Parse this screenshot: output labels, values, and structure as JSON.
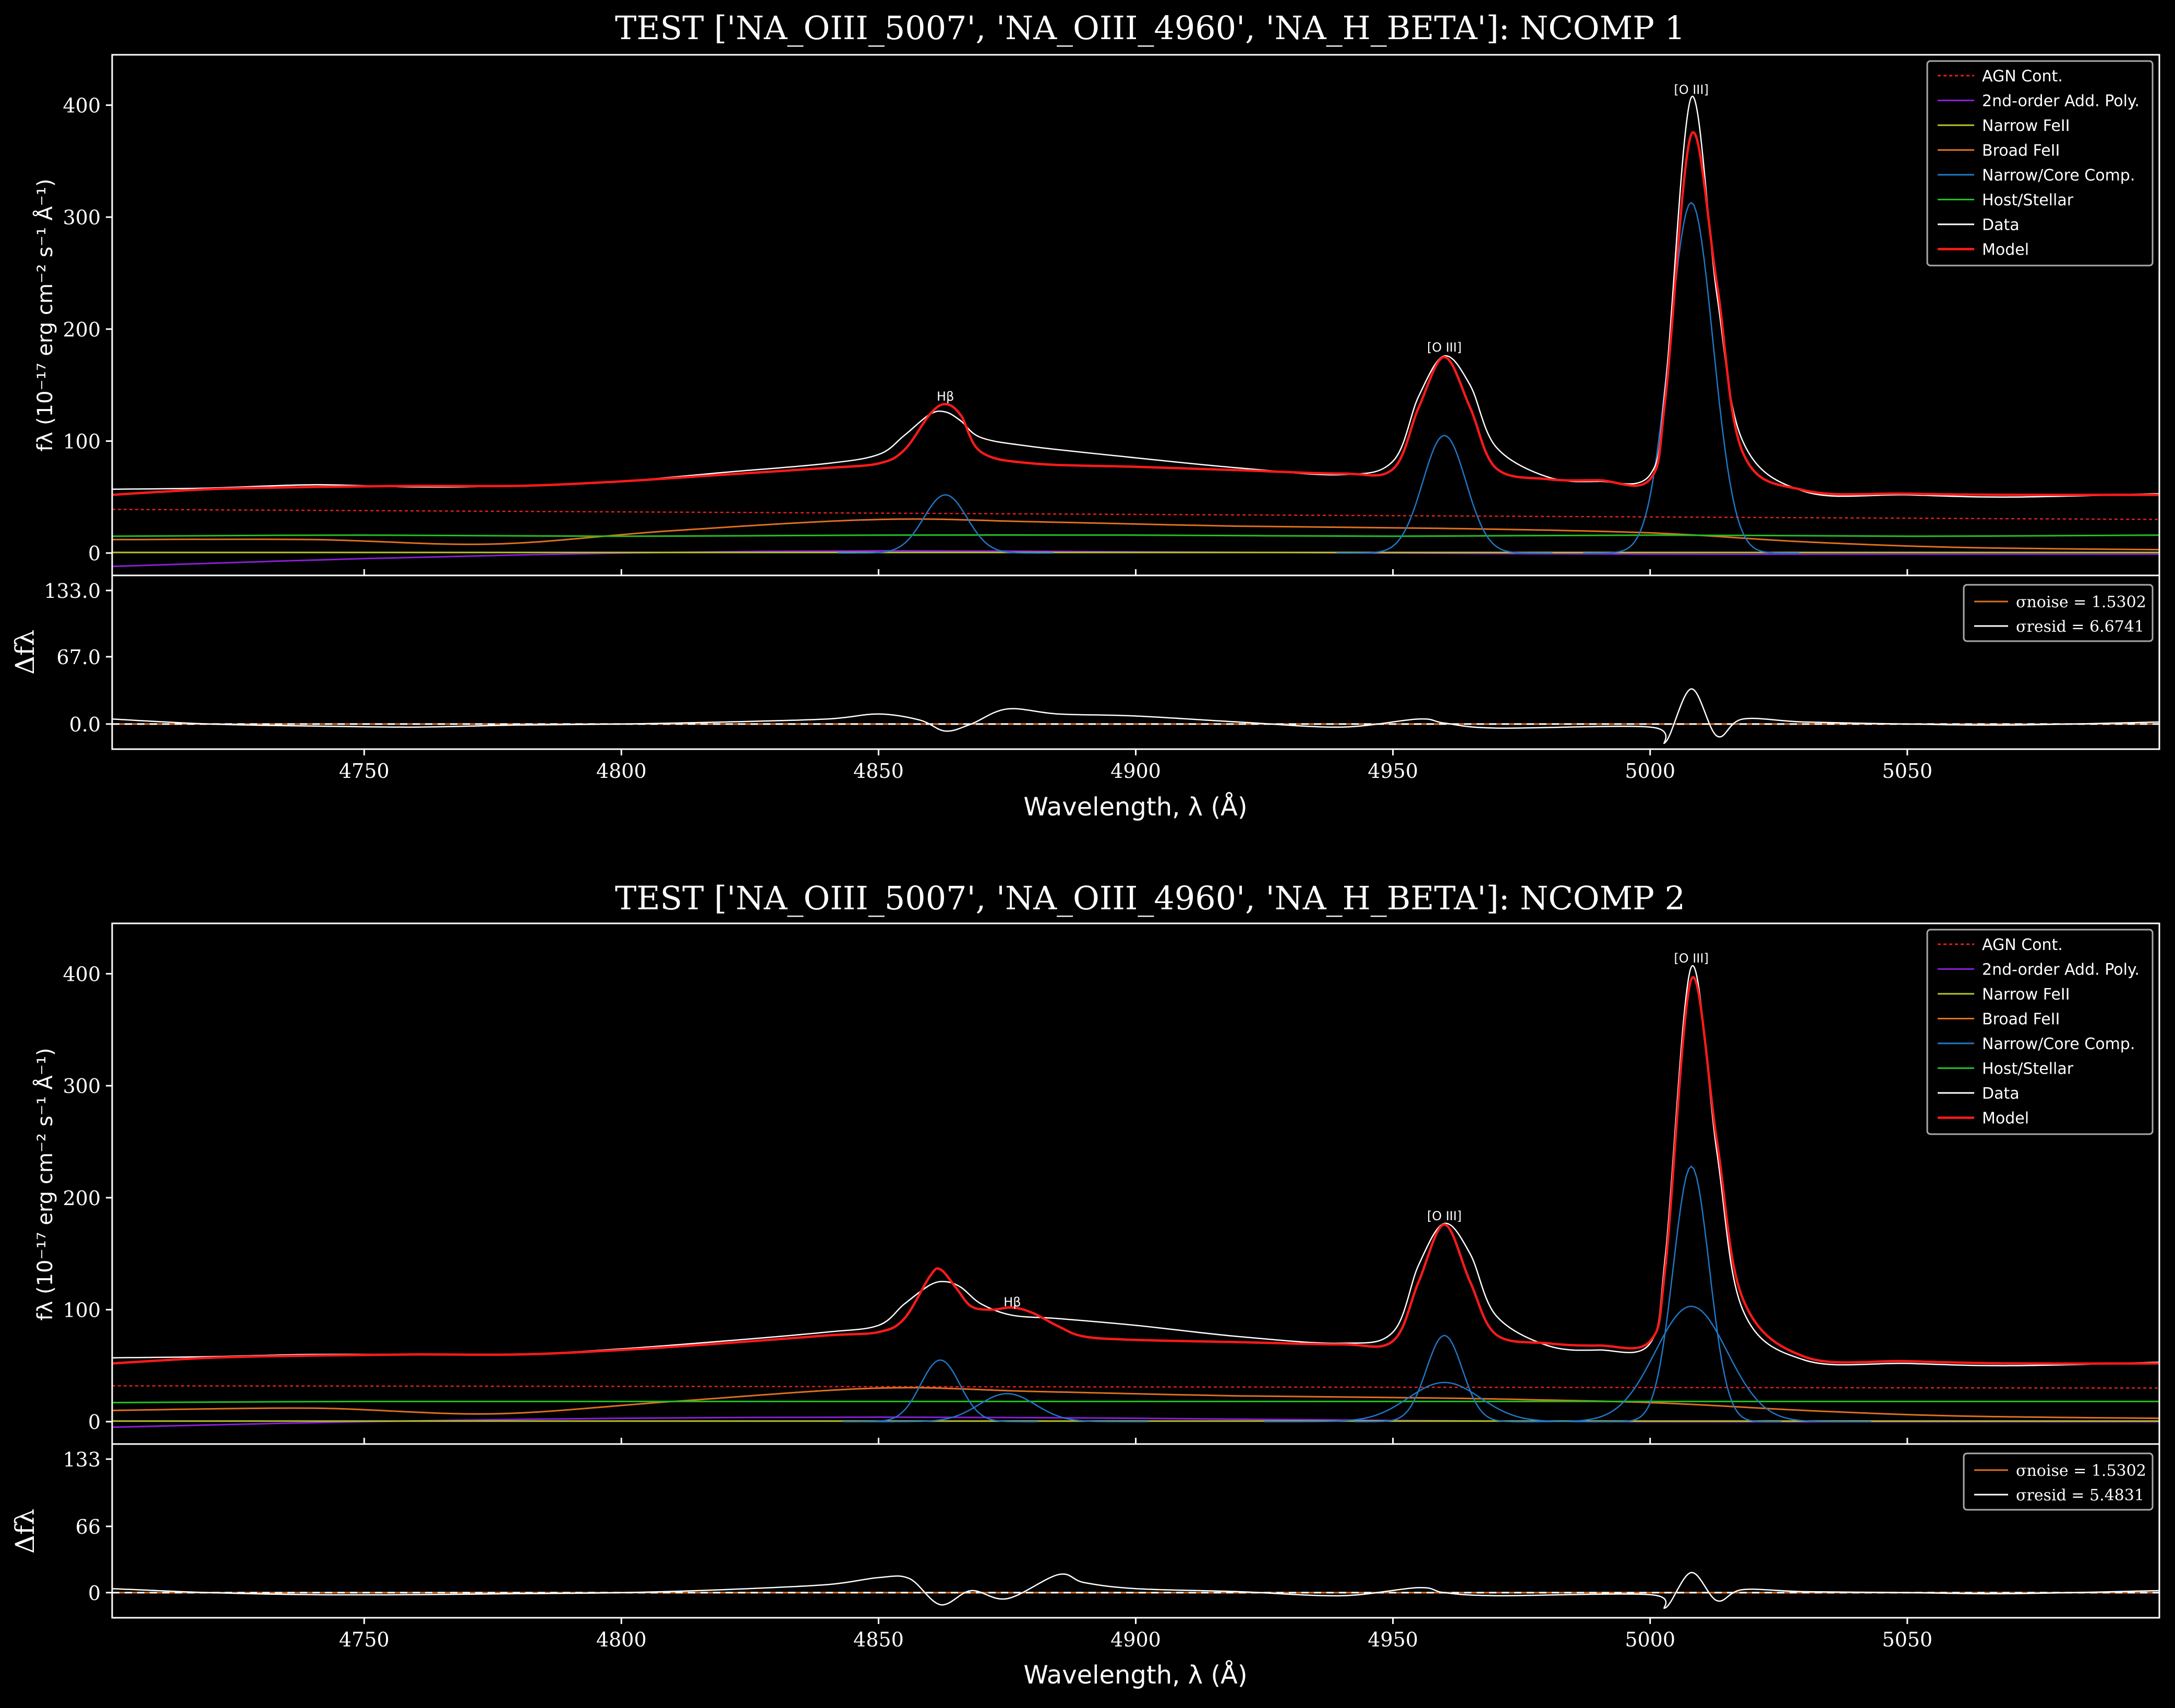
{
  "colors": {
    "background": "#000000",
    "axis": "#ffffff",
    "agn_cont": "#e02020",
    "poly": "#8a1fd6",
    "narrow_feii": "#b7c42a",
    "broad_feii": "#e0701e",
    "core": "#1f78c8",
    "host": "#21c021",
    "data": "#ffffff",
    "model": "#ff1a1a",
    "noise": "#e0701e",
    "resid": "#ffffff"
  },
  "legend_entries": [
    {
      "label": "AGN Cont.",
      "color": "#e02020",
      "dash": true
    },
    {
      "label": "2nd-order Add. Poly.",
      "color": "#8a1fd6",
      "dash": false
    },
    {
      "label": "Narrow FeII",
      "color": "#b7c42a",
      "dash": false
    },
    {
      "label": "Broad FeII",
      "color": "#e0701e",
      "dash": false
    },
    {
      "label": "Narrow/Core Comp.",
      "color": "#1f78c8",
      "dash": false
    },
    {
      "label": "Host/Stellar",
      "color": "#21c021",
      "dash": false
    },
    {
      "label": "Data",
      "color": "#ffffff",
      "dash": false
    },
    {
      "label": "Model",
      "color": "#ff1a1a",
      "dash": false,
      "thick": true
    }
  ],
  "chart_data": [
    {
      "type": "line",
      "title": "TEST ['NA_OIII_5007', 'NA_OIII_4960', 'NA_H_BETA']: NCOMP 1",
      "xlabel": "Wavelength, λ (Å)",
      "ylabel": "fλ (10⁻¹⁷ erg cm⁻² s⁻¹ Å⁻¹)",
      "resid_ylabel": "Δfλ",
      "xlim": [
        4701,
        5099
      ],
      "ylim": [
        -20,
        445
      ],
      "resid_ylim": [
        -25,
        148
      ],
      "x_ticks": [
        4750,
        4800,
        4850,
        4900,
        4950,
        5000,
        5050
      ],
      "y_ticks": [
        0,
        100,
        200,
        300,
        400
      ],
      "resid_ticks": [
        "0.0",
        "67.0",
        "133.0"
      ],
      "resid_tick_values": [
        0,
        67,
        133
      ],
      "line_labels": [
        {
          "text": "Hβ",
          "x": 4863,
          "y": 136
        },
        {
          "text": "[O III]",
          "x": 4960,
          "y": 180
        },
        {
          "text": "[O III]",
          "x": 5008,
          "y": 410
        }
      ],
      "resid_legend": [
        "σnoise = 1.5302",
        "σresid = 6.6741"
      ],
      "legend_placement": "top-right",
      "series": [
        {
          "name": "AGN Cont.",
          "kind": "agn",
          "x": [
            4701,
            5099
          ],
          "y": [
            39,
            30
          ]
        },
        {
          "name": "2nd-order Add. Poly.",
          "kind": "poly",
          "x": [
            4701,
            4750,
            4800,
            4850,
            4900,
            4950,
            5000,
            5050,
            5099
          ],
          "y": [
            -12,
            -5,
            0,
            2,
            1,
            0,
            -1,
            -1,
            -1
          ]
        },
        {
          "name": "Narrow FeII",
          "kind": "nfeii",
          "x": [
            4701,
            4800,
            4900,
            5000,
            5099
          ],
          "y": [
            0.5,
            0.5,
            0.5,
            0.5,
            0.5
          ]
        },
        {
          "name": "Broad FeII",
          "kind": "bfeii",
          "x": [
            4701,
            4740,
            4775,
            4810,
            4850,
            4880,
            4920,
            4960,
            5000,
            5030,
            5060,
            5099
          ],
          "y": [
            12,
            12,
            8,
            20,
            30,
            28,
            24,
            22,
            18,
            10,
            5,
            3
          ]
        },
        {
          "name": "Host/Stellar",
          "kind": "host",
          "x": [
            4701,
            4750,
            4800,
            4850,
            4900,
            4950,
            5000,
            5050,
            5099
          ],
          "y": [
            15,
            16,
            15,
            16,
            16,
            15,
            16,
            15,
            16
          ]
        },
        {
          "name": "Narrow/Core Comp. Hβ",
          "kind": "core",
          "gauss": {
            "center": 4863,
            "amp": 52,
            "sigma": 4.2
          }
        },
        {
          "name": "Narrow/Core Comp. [O III] 4960",
          "kind": "core",
          "gauss": {
            "center": 4960,
            "amp": 105,
            "sigma": 4.2
          }
        },
        {
          "name": "Narrow/Core Comp. [O III] 5007",
          "kind": "core",
          "gauss": {
            "center": 5008,
            "amp": 313,
            "sigma": 4.2
          }
        },
        {
          "name": "Data",
          "kind": "data",
          "x": [
            4701,
            4720,
            4740,
            4760,
            4780,
            4800,
            4820,
            4840,
            4850,
            4855,
            4860,
            4863,
            4866,
            4870,
            4880,
            4900,
            4920,
            4940,
            4950,
            4955,
            4960,
            4965,
            4970,
            4980,
            4990,
            5000,
            5003,
            5008,
            5013,
            5018,
            5030,
            5050,
            5070,
            5099
          ],
          "y": [
            57,
            58,
            61,
            59,
            60,
            64,
            72,
            80,
            88,
            105,
            124,
            126,
            118,
            103,
            95,
            85,
            76,
            70,
            82,
            140,
            176,
            150,
            95,
            68,
            64,
            70,
            150,
            407,
            230,
            100,
            55,
            52,
            50,
            53
          ]
        },
        {
          "name": "Model",
          "kind": "model",
          "x": [
            4701,
            4720,
            4740,
            4760,
            4780,
            4800,
            4820,
            4840,
            4850,
            4855,
            4860,
            4863,
            4866,
            4870,
            4880,
            4900,
            4920,
            4940,
            4950,
            4955,
            4960,
            4965,
            4970,
            4980,
            4990,
            5000,
            5003,
            5008,
            5013,
            5018,
            5030,
            5050,
            5070,
            5099
          ],
          "y": [
            52,
            57,
            59,
            60,
            60,
            64,
            70,
            76,
            80,
            92,
            124,
            133,
            123,
            90,
            80,
            77,
            74,
            71,
            75,
            130,
            175,
            130,
            76,
            66,
            65,
            66,
            140,
            374,
            240,
            90,
            56,
            53,
            52,
            52
          ]
        }
      ],
      "residual": {
        "x": [
          4701,
          4720,
          4740,
          4760,
          4780,
          4800,
          4820,
          4840,
          4850,
          4858,
          4863,
          4868,
          4875,
          4885,
          4900,
          4920,
          4940,
          4955,
          4960,
          4970,
          5000,
          5003,
          5008,
          5013,
          5018,
          5030,
          5050,
          5070,
          5099
        ],
        "y": [
          5,
          0,
          -2,
          -3,
          -1,
          0,
          2,
          5,
          10,
          4,
          -7,
          0,
          15,
          10,
          8,
          2,
          -3,
          5,
          1,
          -4,
          -3,
          -18,
          35,
          -12,
          5,
          2,
          0,
          -1,
          2
        ]
      }
    },
    {
      "type": "line",
      "title": "TEST ['NA_OIII_5007', 'NA_OIII_4960', 'NA_H_BETA']: NCOMP 2",
      "xlabel": "Wavelength, λ (Å)",
      "ylabel": "fλ (10⁻¹⁷ erg cm⁻² s⁻¹ Å⁻¹)",
      "resid_ylabel": "Δfλ",
      "xlim": [
        4701,
        5099
      ],
      "ylim": [
        -20,
        445
      ],
      "resid_ylim": [
        -25,
        148
      ],
      "x_ticks": [
        4750,
        4800,
        4850,
        4900,
        4950,
        5000,
        5050
      ],
      "y_ticks": [
        0,
        100,
        200,
        300,
        400
      ],
      "resid_ticks": [
        "0",
        "66",
        "133"
      ],
      "resid_tick_values": [
        0,
        66,
        133
      ],
      "line_labels": [
        {
          "text": "Hβ",
          "x": 4876,
          "y": 103
        },
        {
          "text": "[O III]",
          "x": 4960,
          "y": 180
        },
        {
          "text": "[O III]",
          "x": 5008,
          "y": 410
        }
      ],
      "resid_legend": [
        "σnoise = 1.5302",
        "σresid = 5.4831"
      ],
      "legend_placement": "top-right",
      "series": [
        {
          "name": "AGN Cont.",
          "kind": "agn",
          "x": [
            4701,
            5099
          ],
          "y": [
            32,
            30
          ]
        },
        {
          "name": "2nd-order Add. Poly.",
          "kind": "poly",
          "x": [
            4701,
            4750,
            4800,
            4850,
            4900,
            4950,
            5000,
            5050,
            5099
          ],
          "y": [
            -5,
            0,
            3,
            4,
            3,
            1,
            0,
            0,
            0
          ]
        },
        {
          "name": "Narrow FeII",
          "kind": "nfeii",
          "x": [
            4701,
            4800,
            4900,
            5000,
            5099
          ],
          "y": [
            0.5,
            0.5,
            0.5,
            0.5,
            0.5
          ]
        },
        {
          "name": "Broad FeII",
          "kind": "bfeii",
          "x": [
            4701,
            4740,
            4775,
            4810,
            4850,
            4880,
            4920,
            4960,
            5000,
            5030,
            5060,
            5099
          ],
          "y": [
            10,
            12,
            7,
            18,
            30,
            27,
            23,
            21,
            17,
            10,
            5,
            3
          ]
        },
        {
          "name": "Host/Stellar",
          "kind": "host",
          "x": [
            4701,
            4750,
            4800,
            4850,
            4900,
            4950,
            5000,
            5050,
            5099
          ],
          "y": [
            17,
            18,
            18,
            18,
            18,
            18,
            18,
            18,
            18
          ]
        },
        {
          "name": "Narrow/Core Comp. Hβ",
          "kind": "core",
          "gauss": {
            "center": 4862,
            "amp": 55,
            "sigma": 3.8
          }
        },
        {
          "name": "Narrow/Core Comp. Hβ broad",
          "kind": "core",
          "gauss": {
            "center": 4875,
            "amp": 25,
            "sigma": 5.5
          }
        },
        {
          "name": "Narrow/Core Comp. [O III] 4960 core",
          "kind": "core",
          "gauss": {
            "center": 4960,
            "amp": 77,
            "sigma": 3.5
          }
        },
        {
          "name": "Narrow/Core Comp. [O III] 4960 wing",
          "kind": "core",
          "gauss": {
            "center": 4960,
            "amp": 35,
            "sigma": 7
          }
        },
        {
          "name": "Narrow/Core Comp. [O III] 5007 core",
          "kind": "core",
          "gauss": {
            "center": 5008,
            "amp": 228,
            "sigma": 3.5
          }
        },
        {
          "name": "Narrow/Core Comp. [O III] 5007 wing",
          "kind": "core",
          "gauss": {
            "center": 5008,
            "amp": 103,
            "sigma": 7
          }
        },
        {
          "name": "Data",
          "kind": "data",
          "x": [
            4701,
            4720,
            4740,
            4760,
            4780,
            4800,
            4820,
            4840,
            4850,
            4855,
            4860,
            4863,
            4866,
            4870,
            4876,
            4885,
            4900,
            4920,
            4940,
            4950,
            4955,
            4960,
            4965,
            4970,
            4980,
            4990,
            5000,
            5003,
            5008,
            5013,
            5018,
            5030,
            5050,
            5070,
            5099
          ],
          "y": [
            57,
            58,
            60,
            60,
            60,
            65,
            72,
            80,
            86,
            105,
            122,
            125,
            120,
            105,
            95,
            92,
            86,
            76,
            70,
            80,
            140,
            177,
            150,
            95,
            68,
            64,
            70,
            150,
            406,
            240,
            100,
            55,
            52,
            50,
            53
          ]
        },
        {
          "name": "Model",
          "kind": "model",
          "x": [
            4701,
            4720,
            4740,
            4760,
            4780,
            4800,
            4820,
            4840,
            4850,
            4855,
            4860,
            4862,
            4865,
            4868,
            4872,
            4876,
            4880,
            4885,
            4890,
            4900,
            4920,
            4940,
            4950,
            4955,
            4960,
            4965,
            4970,
            4980,
            4990,
            5000,
            5003,
            5008,
            5013,
            5018,
            5030,
            5050,
            5070,
            5099
          ],
          "y": [
            52,
            57,
            59,
            60,
            60,
            64,
            70,
            77,
            80,
            92,
            130,
            136,
            120,
            103,
            100,
            102,
            97,
            85,
            76,
            73,
            71,
            69,
            72,
            125,
            176,
            125,
            78,
            70,
            68,
            72,
            140,
            395,
            250,
            110,
            58,
            54,
            52,
            52
          ]
        }
      ],
      "residual": {
        "x": [
          4701,
          4720,
          4740,
          4760,
          4780,
          4800,
          4820,
          4840,
          4850,
          4856,
          4862,
          4868,
          4875,
          4885,
          4890,
          4900,
          4920,
          4940,
          4955,
          4960,
          4970,
          5000,
          5003,
          5008,
          5013,
          5018,
          5030,
          5050,
          5070,
          5099
        ],
        "y": [
          4,
          0,
          -2,
          -2,
          -1,
          0,
          3,
          8,
          15,
          14,
          -12,
          2,
          -6,
          18,
          10,
          4,
          1,
          -3,
          5,
          0,
          -3,
          -2,
          -15,
          20,
          -8,
          3,
          1,
          0,
          -1,
          2
        ]
      }
    }
  ]
}
